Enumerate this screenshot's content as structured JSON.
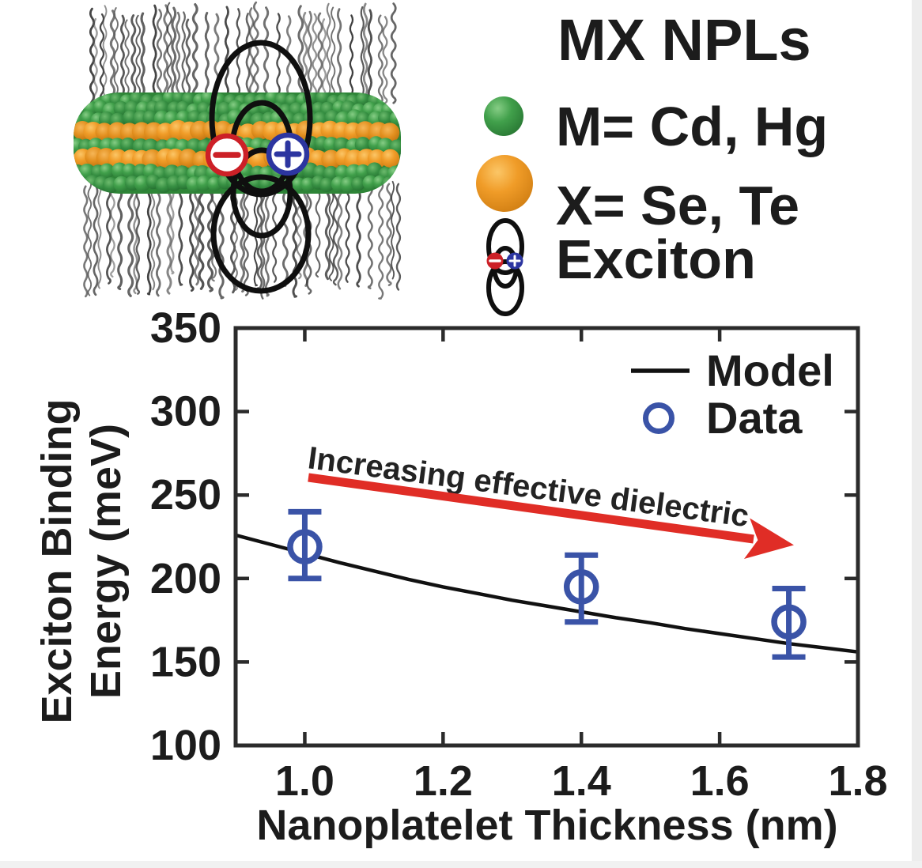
{
  "illustration": {
    "ligand_color": "#3c3c3c",
    "atom_green": "#3f9b47",
    "atom_orange": "#ef9a20",
    "electron_color": "#cc2027",
    "hole_color": "#2c35a0",
    "electron_symbol": "−",
    "hole_symbol": "+"
  },
  "legend_panel": {
    "title": "MX NPLs",
    "items": [
      {
        "icon": "green-sphere",
        "label": "M= Cd, Hg"
      },
      {
        "icon": "orange-sphere",
        "label": "X= Se, Te"
      },
      {
        "icon": "exciton-orbitals",
        "label": "Exciton"
      }
    ]
  },
  "chart_data": {
    "type": "line+scatter",
    "title": "",
    "xlabel": "Nanoplatelet Thickness (nm)",
    "ylabel": "Exciton Binding Energy (meV)",
    "ylabel_lines": [
      "Exciton Binding",
      "Energy (meV)"
    ],
    "xlim": [
      0.9,
      1.8
    ],
    "ylim": [
      100,
      350
    ],
    "xticks": [
      1.0,
      1.2,
      1.4,
      1.6,
      1.8
    ],
    "yticks": [
      100,
      150,
      200,
      250,
      300,
      350
    ],
    "grid": false,
    "legend": {
      "position": "upper-right",
      "items": [
        "Model",
        "Data"
      ]
    },
    "annotation": {
      "text": "Increasing effective dielectric",
      "arrow_color": "#e02d26"
    },
    "series": [
      {
        "name": "Model",
        "type": "line",
        "color": "#111111",
        "points": [
          [
            0.9,
            226
          ],
          [
            0.95,
            220.5
          ],
          [
            1.0,
            215
          ],
          [
            1.05,
            209.5
          ],
          [
            1.1,
            204.5
          ],
          [
            1.15,
            199.5
          ],
          [
            1.2,
            195
          ],
          [
            1.25,
            191
          ],
          [
            1.3,
            187
          ],
          [
            1.35,
            183.5
          ],
          [
            1.4,
            180
          ],
          [
            1.45,
            176.5
          ],
          [
            1.5,
            173.5
          ],
          [
            1.55,
            170
          ],
          [
            1.6,
            167
          ],
          [
            1.65,
            164
          ],
          [
            1.7,
            161
          ],
          [
            1.75,
            158.5
          ],
          [
            1.8,
            156
          ]
        ]
      },
      {
        "name": "Data",
        "type": "scatter",
        "color": "#3a53a7",
        "points": [
          {
            "x": 1.0,
            "y": 219,
            "y_err_plus": 21,
            "y_err_minus": 19
          },
          {
            "x": 1.4,
            "y": 195,
            "y_err_plus": 19,
            "y_err_minus": 21
          },
          {
            "x": 1.7,
            "y": 174,
            "y_err_plus": 20,
            "y_err_minus": 21
          }
        ]
      }
    ]
  }
}
